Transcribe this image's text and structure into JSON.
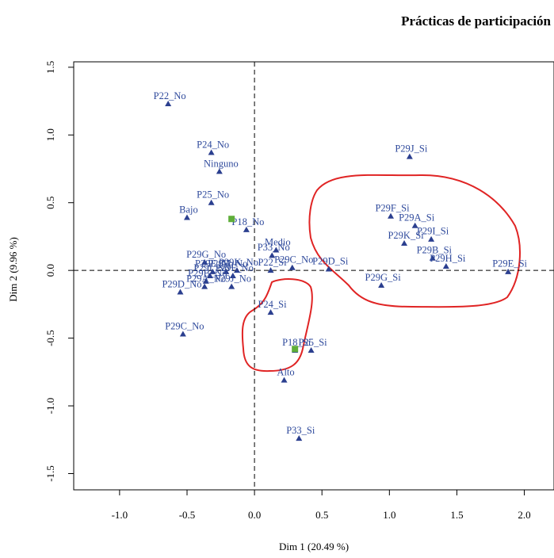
{
  "chart_data": {
    "type": "scatter",
    "title": "Prácticas de participación",
    "xlabel": "Dim 1 (20.49 %)",
    "ylabel": "Dim 2 (9.96 %)",
    "xlim": [
      -1.34,
      2.22
    ],
    "ylim": [
      -1.62,
      1.54
    ],
    "xticks": [
      {
        "value": -1,
        "label": "-1.0"
      },
      -0.5,
      {
        "value": 0,
        "label": "0.0"
      },
      0.5,
      {
        "value": 1,
        "label": "1.0"
      },
      1.5,
      {
        "value": 2,
        "label": "2.0"
      }
    ],
    "yticks": [
      {
        "value": -1.5,
        "label": "-1.5"
      },
      {
        "value": -1,
        "label": "-1.0"
      },
      {
        "value": -0.5,
        "label": "-0.5"
      },
      {
        "value": 0,
        "label": "0.0"
      },
      0.5,
      {
        "value": 1,
        "label": "1.0"
      },
      1.5
    ],
    "reference_lines": {
      "x": 0,
      "y": 0
    },
    "series": [
      {
        "marker": "triangle",
        "color": "#2b3f8f",
        "labels": [
          "P22_No",
          "P24_No",
          "Ninguno",
          "P25_No",
          "Bajo",
          "P18_No",
          "P33_No",
          "Medio",
          "P29D_Si",
          "P29C_No",
          "P29G_No",
          "P29H_No",
          "P29K_No",
          "P29E_No",
          "P29I_No",
          "P29F_No",
          "P29B_No",
          "P29A_No",
          "P29J_No",
          "P29D_No",
          "P22_Si",
          "P24_Si",
          "P29C_No",
          "P18_Si",
          "P25_Si",
          "Alto",
          "P33_Si",
          "P29J_Si",
          "P29F_Si",
          "P29A_Si",
          "P29I_Si",
          "P29K_Si",
          "P29B_Si",
          "P29H_Si",
          "P29E_Si",
          "P29G_Si"
        ],
        "x": [
          -0.64,
          -0.32,
          -0.26,
          -0.32,
          -0.5,
          -0.06,
          0.13,
          0.16,
          0.55,
          0.28,
          -0.37,
          -0.21,
          -0.13,
          -0.31,
          -0.33,
          -0.16,
          -0.36,
          -0.37,
          -0.17,
          -0.55,
          0.12,
          0.12,
          -0.53,
          0.3,
          0.42,
          0.22,
          0.33,
          1.15,
          1.01,
          1.19,
          1.31,
          1.11,
          1.32,
          1.42,
          1.88,
          0.94
        ],
        "y": [
          1.23,
          0.87,
          0.73,
          0.5,
          0.39,
          0.3,
          0.11,
          0.15,
          0.01,
          0.02,
          0.06,
          -0.01,
          0.0,
          -0.01,
          -0.04,
          -0.04,
          -0.08,
          -0.12,
          -0.12,
          -0.16,
          0.0,
          -0.31,
          -0.47,
          -0.59,
          -0.59,
          -0.81,
          -1.24,
          0.84,
          0.4,
          0.33,
          0.23,
          0.2,
          0.09,
          0.03,
          -0.01,
          -0.11
        ]
      },
      {
        "marker": "square",
        "color": "#5fae3a",
        "x": [
          -0.17,
          0.3
        ],
        "y": [
          0.38,
          -0.58
        ]
      }
    ]
  }
}
